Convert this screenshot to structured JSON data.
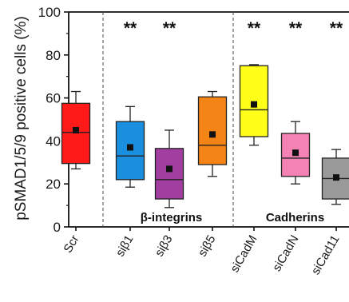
{
  "chart_data": {
    "type": "box",
    "ylabel": "pSMAD1/5/9 positive cells (%)",
    "ylim": [
      0,
      100
    ],
    "yticks": [
      0,
      20,
      40,
      60,
      80,
      100
    ],
    "categories": [
      "Scr",
      "siβ1",
      "siβ3",
      "siβ5",
      "siCadM",
      "siCadN",
      "siCad11"
    ],
    "boxes": [
      {
        "category": "Scr",
        "whisker_low": 27,
        "q1": 29.5,
        "median": 44,
        "q3": 57.5,
        "whisker_high": 63,
        "mean": 45,
        "color": "#ff1a1a",
        "significance": ""
      },
      {
        "category": "siβ1",
        "whisker_low": 18.5,
        "q1": 22,
        "median": 33,
        "q3": 49,
        "whisker_high": 56,
        "mean": 37,
        "color": "#1a8fe0",
        "significance": "**"
      },
      {
        "category": "siβ3",
        "whisker_low": 9,
        "q1": 13,
        "median": 22,
        "q3": 36.5,
        "whisker_high": 45,
        "mean": 27,
        "color": "#a23ea0",
        "significance": "**"
      },
      {
        "category": "siβ5",
        "whisker_low": 23.5,
        "q1": 29,
        "median": 38,
        "q3": 60.5,
        "whisker_high": 63,
        "mean": 43,
        "color": "#f58416",
        "significance": ""
      },
      {
        "category": "siCadM",
        "whisker_low": 38,
        "q1": 42,
        "median": 54.5,
        "q3": 75,
        "whisker_high": 75.5,
        "mean": 57,
        "color": "#ffff1a",
        "significance": "**"
      },
      {
        "category": "siCadN",
        "whisker_low": 20,
        "q1": 23.5,
        "median": 32,
        "q3": 43.5,
        "whisker_high": 49,
        "mean": 34.5,
        "color": "#f582b4",
        "significance": "**"
      },
      {
        "category": "siCad11",
        "whisker_low": 10.5,
        "q1": 13,
        "median": 22.5,
        "q3": 32,
        "whisker_high": 36,
        "mean": 23,
        "color": "#9a9a9a",
        "significance": "**"
      }
    ],
    "groups": [
      {
        "label": "β-integrins",
        "categories": [
          "siβ1",
          "siβ3",
          "siβ5"
        ]
      },
      {
        "label": "Cadherins",
        "categories": [
          "siCadM",
          "siCadN",
          "siCad11"
        ]
      }
    ],
    "grid": false
  }
}
